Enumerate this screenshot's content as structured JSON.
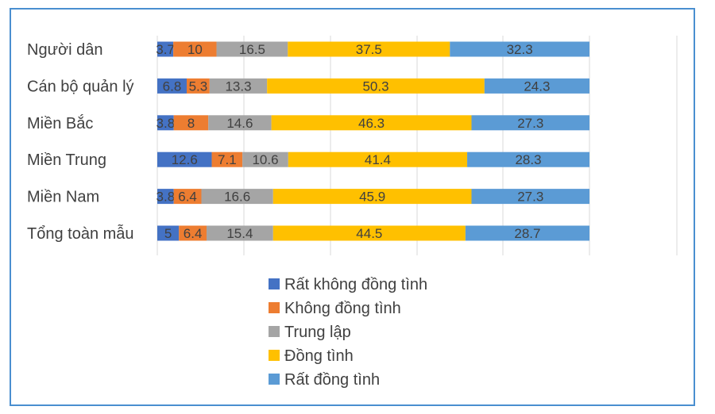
{
  "chart_data": {
    "type": "bar",
    "orientation": "horizontal",
    "stacked": "percent",
    "title": "",
    "xlabel": "",
    "ylabel": "",
    "xlim": [
      0,
      100
    ],
    "grid": true,
    "legend_position": "bottom",
    "categories": [
      "Người dân",
      "Cán bộ quản lý",
      "Miền Bắc",
      "Miền Trung",
      "Miền Nam",
      "Tổng toàn mẫu"
    ],
    "series": [
      {
        "name": "Rất không đồng tình",
        "color": "#4472c4",
        "values": [
          3.7,
          6.8,
          3.8,
          12.6,
          3.8,
          5
        ]
      },
      {
        "name": "Không đồng tình",
        "color": "#ed7d31",
        "values": [
          10,
          5.3,
          8,
          7.1,
          6.4,
          6.4
        ]
      },
      {
        "name": "Trung lập",
        "color": "#a5a5a5",
        "values": [
          16.5,
          13.3,
          14.6,
          10.6,
          16.6,
          15.4
        ]
      },
      {
        "name": "Đồng tình",
        "color": "#ffc000",
        "values": [
          37.5,
          50.3,
          46.3,
          41.4,
          45.9,
          44.5
        ]
      },
      {
        "name": "Rất đồng tình",
        "color": "#5b9bd5",
        "values": [
          32.3,
          24.3,
          27.3,
          28.3,
          27.3,
          28.7
        ]
      }
    ],
    "gridline_color": "#d9d9d9",
    "label_color": "#404040",
    "border_color": "#4a8fd0"
  }
}
